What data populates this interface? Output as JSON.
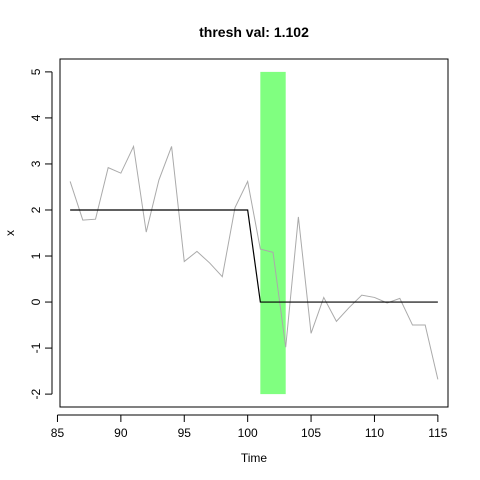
{
  "chart_data": {
    "type": "line",
    "title": "thresh val: 1.102",
    "xlabel": "Time",
    "ylabel": "x",
    "xlim": [
      85.2,
      115.8
    ],
    "ylim": [
      -2.28,
      5.28
    ],
    "xticks": [
      85,
      90,
      95,
      100,
      105,
      110,
      115
    ],
    "yticks": [
      -2,
      -1,
      0,
      1,
      2,
      3,
      4,
      5
    ],
    "grid": false,
    "legend": "none",
    "highlight_band": {
      "x_start": 101,
      "x_end": 103,
      "y_start": -2,
      "y_end": 5,
      "color": "#80ff80"
    },
    "series": [
      {
        "style": "raw",
        "color": "#aaaaaa",
        "x": [
          86,
          87,
          88,
          89,
          90,
          91,
          92,
          93,
          94,
          95,
          96,
          97,
          98,
          99,
          100,
          101,
          102,
          103,
          104,
          105,
          106,
          107,
          108,
          109,
          110,
          111,
          112,
          113,
          114,
          115
        ],
        "values": [
          2.62,
          1.78,
          1.8,
          2.92,
          2.8,
          3.38,
          1.52,
          2.65,
          3.38,
          0.88,
          1.1,
          0.85,
          0.55,
          2.05,
          2.62,
          1.15,
          1.08,
          -0.98,
          1.85,
          -0.68,
          0.1,
          -0.42,
          -0.12,
          0.15,
          0.1,
          -0.02,
          0.08,
          -0.5,
          -0.5,
          -1.68
        ]
      },
      {
        "style": "fitted",
        "color": "#000000",
        "x": [
          86,
          100,
          101,
          115
        ],
        "values": [
          2.0,
          2.0,
          0.0,
          0.0
        ]
      }
    ]
  }
}
